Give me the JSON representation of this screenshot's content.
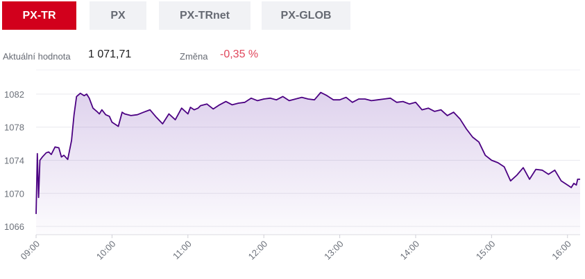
{
  "tabs": [
    {
      "label": "PX-TR",
      "active": true
    },
    {
      "label": "PX",
      "active": false
    },
    {
      "label": "PX-TRnet",
      "active": false
    },
    {
      "label": "PX-GLOB",
      "active": false
    }
  ],
  "stats": {
    "value_label": "Aktuální hodnota",
    "value": "1 071,71",
    "change_label": "Změna",
    "change": "-0,35 %"
  },
  "colors": {
    "accent": "#d2001c",
    "line": "#4b0082",
    "change_negative": "#e0465b"
  },
  "chart_data": {
    "type": "area",
    "title": "",
    "xlabel": "",
    "ylabel": "",
    "ylim": [
      1065,
      1085
    ],
    "xlim": [
      "09:00",
      "16:10"
    ],
    "y_ticks": [
      1066,
      1070,
      1074,
      1078,
      1082
    ],
    "x_ticks": [
      "09:00",
      "10:00",
      "11:00",
      "12:00",
      "13:00",
      "14:00",
      "15:00",
      "16:00"
    ],
    "grid": true,
    "legend": "none",
    "series": [
      {
        "name": "",
        "x": [
          "09:00",
          "09:01",
          "09:02",
          "09:03",
          "09:05",
          "09:08",
          "09:10",
          "09:12",
          "09:15",
          "09:18",
          "09:20",
          "09:22",
          "09:25",
          "09:28",
          "09:30",
          "09:32",
          "09:35",
          "09:38",
          "09:40",
          "09:42",
          "09:45",
          "09:48",
          "09:50",
          "09:52",
          "09:55",
          "09:58",
          "10:00",
          "10:05",
          "10:08",
          "10:10",
          "10:15",
          "10:20",
          "10:25",
          "10:30",
          "10:35",
          "10:40",
          "10:45",
          "10:50",
          "10:55",
          "11:00",
          "11:02",
          "11:05",
          "11:08",
          "11:10",
          "11:15",
          "11:20",
          "11:25",
          "11:30",
          "11:35",
          "11:40",
          "11:45",
          "11:50",
          "11:55",
          "12:00",
          "12:05",
          "12:10",
          "12:15",
          "12:20",
          "12:25",
          "12:30",
          "12:35",
          "12:40",
          "12:45",
          "12:50",
          "12:55",
          "13:00",
          "13:05",
          "13:10",
          "13:15",
          "13:20",
          "13:25",
          "13:30",
          "13:35",
          "13:40",
          "13:45",
          "13:50",
          "13:55",
          "14:00",
          "14:05",
          "14:10",
          "14:15",
          "14:20",
          "14:25",
          "14:30",
          "14:35",
          "14:40",
          "14:45",
          "14:50",
          "14:55",
          "15:00",
          "15:05",
          "15:10",
          "15:15",
          "15:20",
          "15:25",
          "15:30",
          "15:35",
          "15:40",
          "15:45",
          "15:50",
          "15:55",
          "16:00",
          "16:03",
          "16:05",
          "16:07",
          "16:08",
          "16:10"
        ],
        "values": [
          1067.5,
          1074.8,
          1069.5,
          1074.0,
          1074.4,
          1074.9,
          1075.0,
          1074.7,
          1075.6,
          1075.5,
          1074.4,
          1074.6,
          1074.1,
          1076.4,
          1079.5,
          1081.7,
          1082.1,
          1081.8,
          1082.0,
          1081.5,
          1080.3,
          1079.9,
          1079.6,
          1080.1,
          1079.5,
          1079.3,
          1078.6,
          1078.1,
          1079.8,
          1079.6,
          1079.4,
          1079.5,
          1079.8,
          1080.1,
          1079.2,
          1078.4,
          1079.6,
          1078.9,
          1080.3,
          1079.6,
          1080.4,
          1080.1,
          1080.3,
          1080.6,
          1080.8,
          1080.2,
          1080.7,
          1081.1,
          1080.7,
          1080.9,
          1081.0,
          1081.5,
          1081.2,
          1081.4,
          1081.5,
          1081.3,
          1081.7,
          1081.2,
          1081.4,
          1081.6,
          1081.4,
          1081.3,
          1082.2,
          1081.8,
          1081.3,
          1081.3,
          1081.6,
          1081.0,
          1081.4,
          1081.4,
          1081.2,
          1081.3,
          1081.4,
          1081.5,
          1081.0,
          1081.1,
          1080.8,
          1081.0,
          1080.1,
          1080.3,
          1079.9,
          1080.1,
          1079.4,
          1079.8,
          1079.0,
          1077.8,
          1076.8,
          1076.2,
          1074.6,
          1074.0,
          1073.7,
          1073.2,
          1071.5,
          1072.2,
          1073.1,
          1071.7,
          1072.9,
          1072.8,
          1072.3,
          1072.8,
          1071.5,
          1071.0,
          1070.7,
          1071.2,
          1071.0,
          1071.7,
          1071.7
        ]
      }
    ]
  }
}
